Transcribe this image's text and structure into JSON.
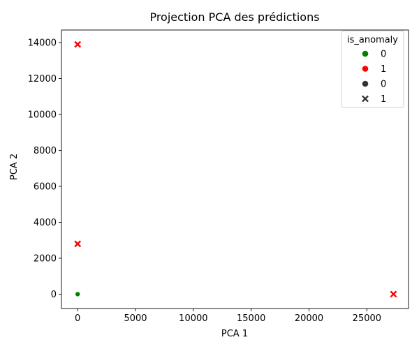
{
  "chart_data": {
    "type": "scatter",
    "title": "Projection PCA des prédictions",
    "xlabel": "PCA 1",
    "ylabel": "PCA 2",
    "xlim": [
      -1400,
      28600
    ],
    "ylim": [
      -800,
      14700
    ],
    "xticks": [
      0,
      5000,
      10000,
      15000,
      20000,
      25000
    ],
    "yticks": [
      0,
      2000,
      4000,
      6000,
      8000,
      10000,
      12000,
      14000
    ],
    "grid": false,
    "colors": {
      "0": "#008000",
      "1": "#ff0000",
      "style_marker": "#333333"
    },
    "points": [
      {
        "x": 0,
        "y": 0,
        "is_anomaly": 0
      },
      {
        "x": 0,
        "y": 13900,
        "is_anomaly": 1
      },
      {
        "x": 0,
        "y": 2800,
        "is_anomaly": 1
      },
      {
        "x": 27300,
        "y": 0,
        "is_anomaly": 1
      }
    ],
    "legend": {
      "title": "is_anomaly",
      "placement": "top-right",
      "entries": [
        {
          "label": "0",
          "marker": "circle",
          "color": "#008000"
        },
        {
          "label": "1",
          "marker": "circle",
          "color": "#ff0000"
        },
        {
          "label": "0",
          "marker": "circle",
          "color": "#333333"
        },
        {
          "label": "1",
          "marker": "x",
          "color": "#333333"
        }
      ]
    }
  }
}
